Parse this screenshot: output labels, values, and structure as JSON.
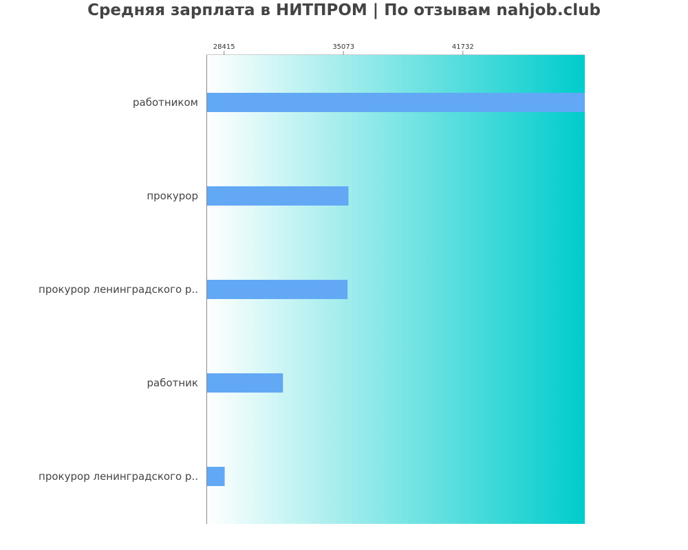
{
  "title": "Средняя зарплата в НИТПРОМ | По отзывам nahjob.club",
  "colors": {
    "bar": "#62a8f5",
    "gradient_start": "#ffffff",
    "gradient_end": "#00cccc",
    "axis": "#888888",
    "text": "#444444"
  },
  "chart_data": {
    "type": "bar",
    "orientation": "horizontal",
    "title": "Средняя зарплата в НИТПРОМ | По отзывам nahjob.club",
    "xlabel": "",
    "ylabel": "",
    "xlim": [
      27430,
      48530
    ],
    "x_ticks": [
      28415,
      35073,
      41732
    ],
    "x_tick_labels": [
      "28415",
      "35073",
      "41732"
    ],
    "x_axis_position": "top",
    "grid": false,
    "categories": [
      "работником",
      "прокурор",
      "прокурор ленинградского р..",
      "работник",
      "прокурор ленинградского р.."
    ],
    "values": [
      48530,
      35350,
      35300,
      31700,
      28450
    ]
  }
}
